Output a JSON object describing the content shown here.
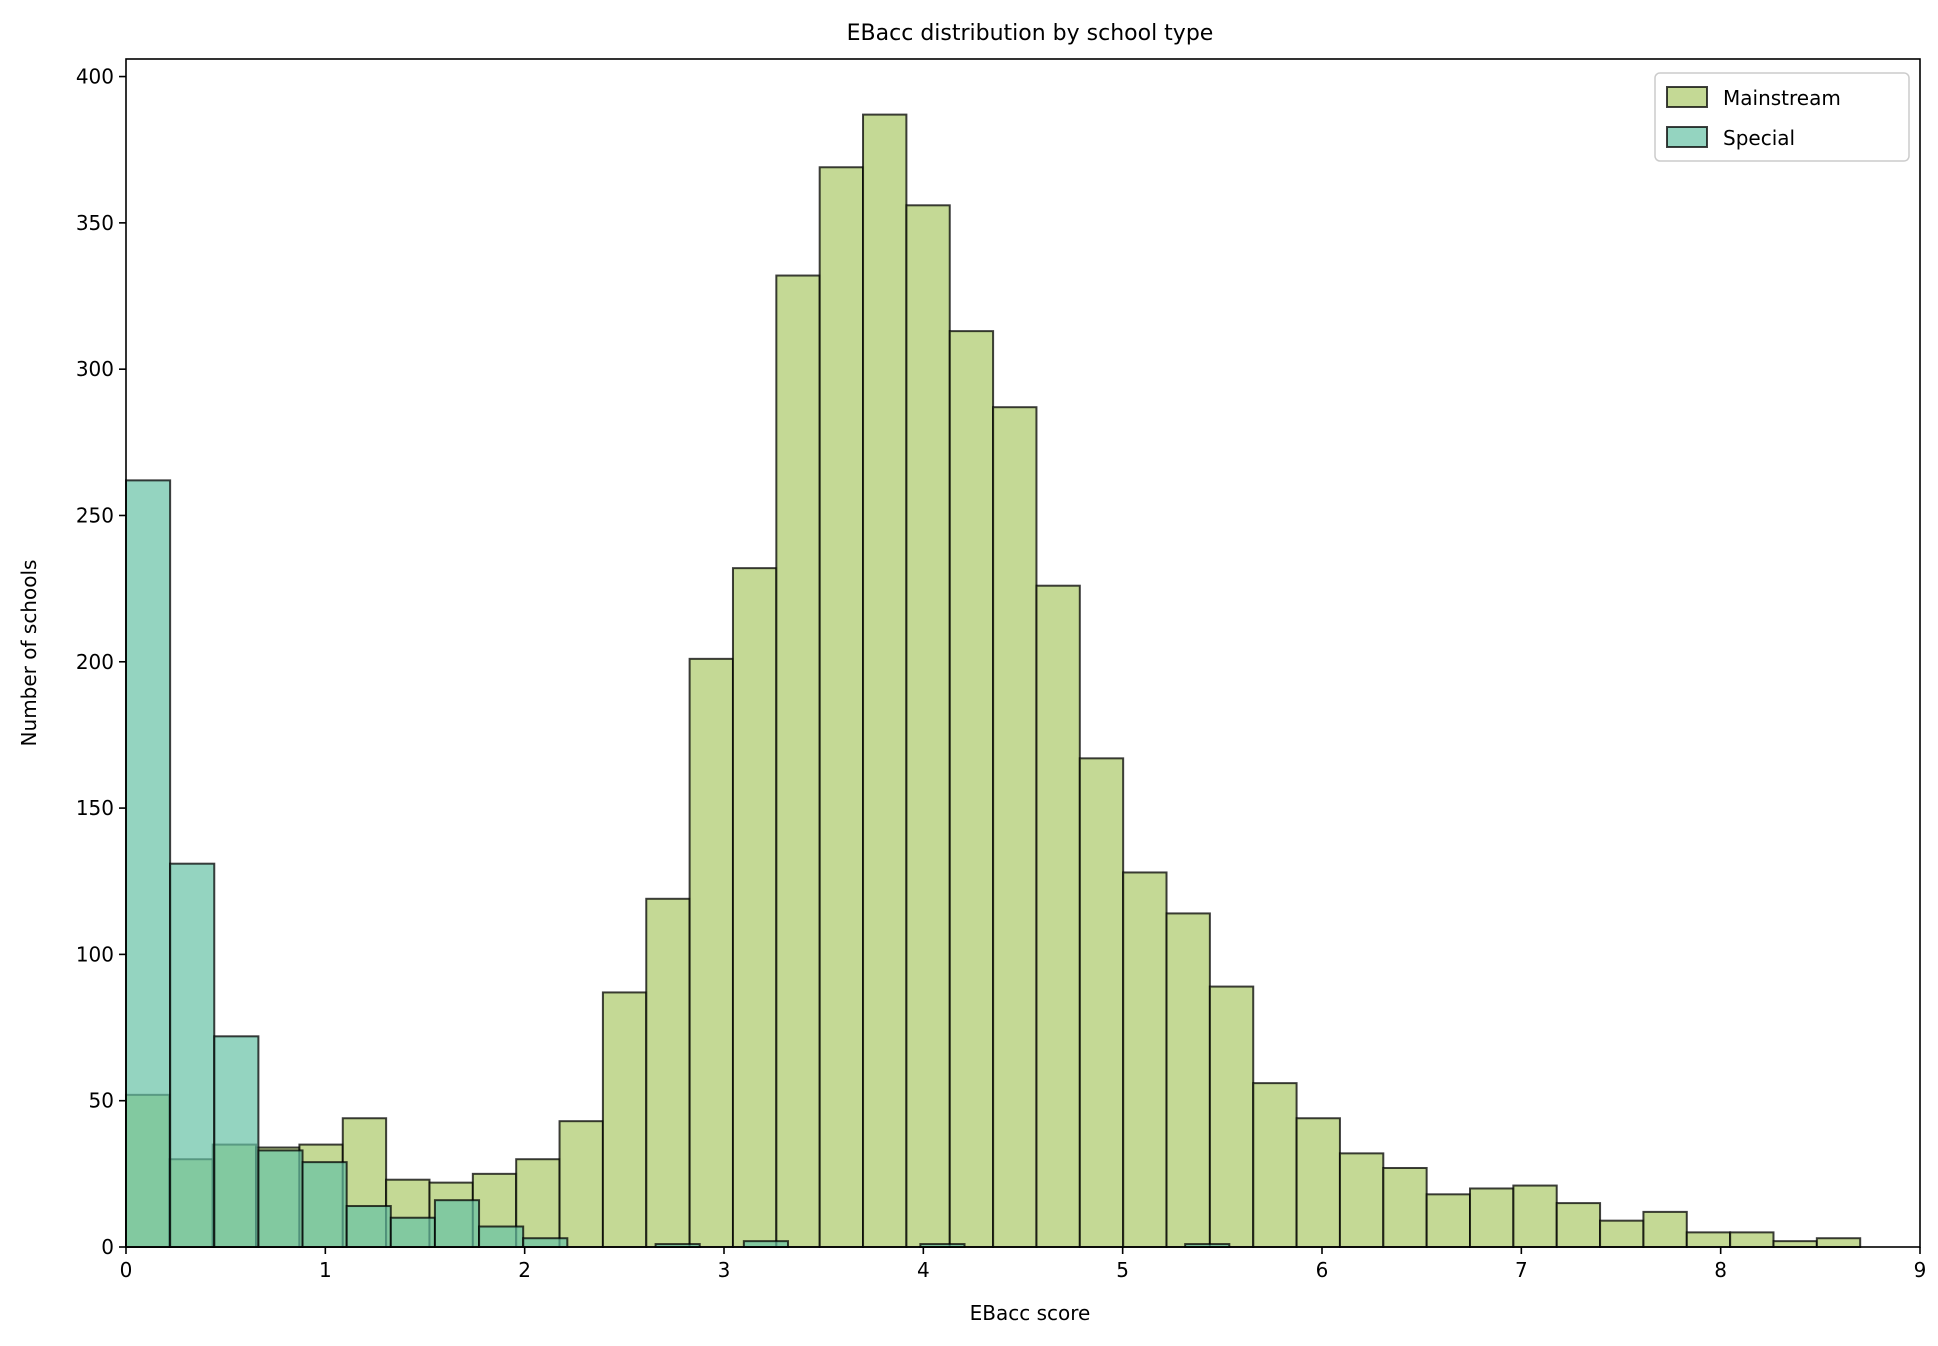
{
  "chart_data": {
    "type": "histogram",
    "title": "EBacc distribution by school type",
    "xlabel": "EBacc score",
    "ylabel": "Number of schools",
    "xlim": [
      0,
      9
    ],
    "ylim": [
      0,
      406
    ],
    "xticks": [
      0,
      1,
      2,
      3,
      4,
      5,
      6,
      7,
      8,
      9
    ],
    "yticks": [
      0,
      50,
      100,
      150,
      200,
      250,
      300,
      350,
      400
    ],
    "grid": false,
    "legend_position": "top-right",
    "series": [
      {
        "name": "Mainstream",
        "color": "#b5cf7a",
        "bin_start": 0,
        "bin_width": 0.2175,
        "counts": [
          52,
          30,
          35,
          34,
          35,
          44,
          23,
          22,
          25,
          30,
          43,
          87,
          119,
          201,
          232,
          332,
          369,
          387,
          356,
          313,
          287,
          226,
          167,
          128,
          114,
          89,
          56,
          44,
          32,
          27,
          18,
          20,
          21,
          15,
          9,
          12,
          5,
          5,
          2,
          3
        ]
      },
      {
        "name": "Special",
        "color": "#66c2a5",
        "bin_start": 0,
        "bin_width": 0.2214,
        "counts": [
          262,
          131,
          72,
          33,
          29,
          14,
          10,
          16,
          7,
          3,
          0,
          0,
          1,
          0,
          2,
          0,
          0,
          0,
          1,
          0,
          0,
          0,
          0,
          0,
          1,
          0,
          0,
          0,
          0,
          0,
          0,
          0,
          0,
          0,
          0,
          0,
          0,
          0,
          0,
          0
        ]
      }
    ]
  }
}
